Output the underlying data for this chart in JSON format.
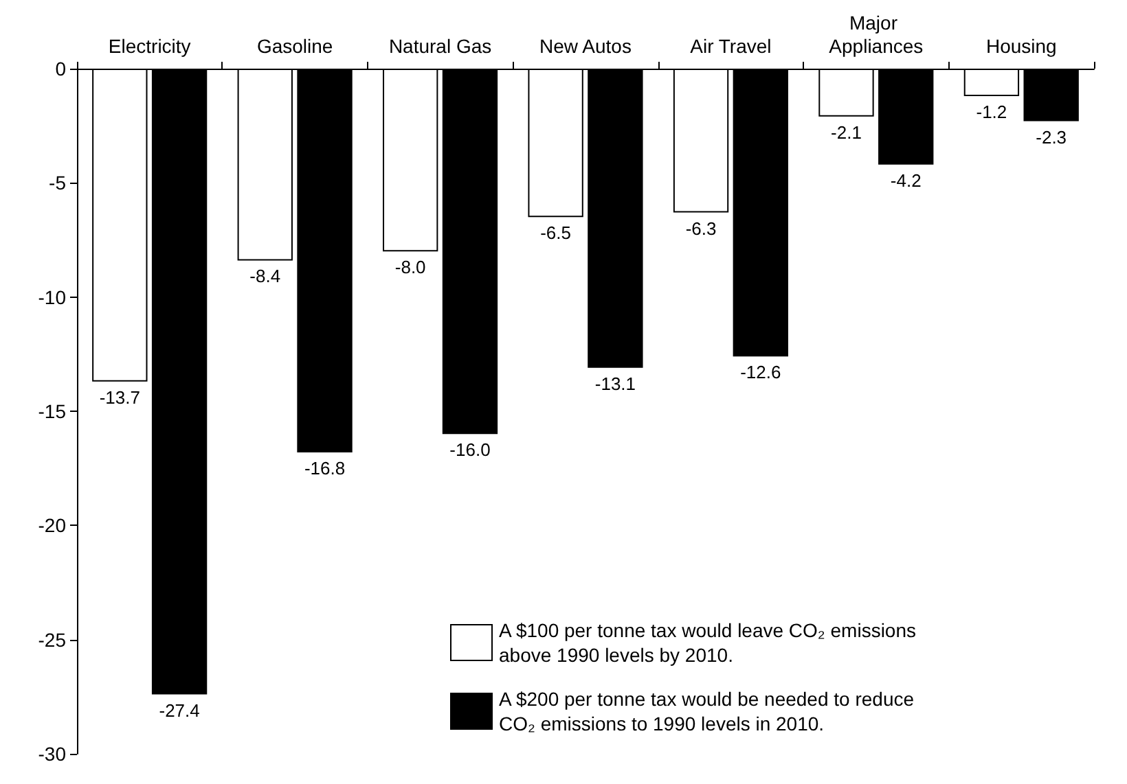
{
  "chart_data": {
    "type": "bar",
    "categories": [
      "Electricity",
      "Gasoline",
      "Natural Gas",
      "New Autos",
      "Air Travel",
      "Major Appliances",
      "Housing"
    ],
    "series": [
      {
        "name": "A $100 per tonne tax would leave CO₂ emissions above 1990 levels by 2010.",
        "color": "#ffffff",
        "values": [
          -13.7,
          -8.4,
          -8.0,
          -6.5,
          -6.3,
          -2.1,
          -1.2
        ],
        "value_labels": [
          "-13.7",
          "-8.4",
          "-8.0",
          "-6.5",
          "-6.3",
          "-2.1",
          "-1.2"
        ]
      },
      {
        "name": "A $200 per tonne tax would be needed to reduce CO₂ emissions to 1990 levels in 2010.",
        "color": "#000000",
        "values": [
          -27.4,
          -16.8,
          -16.0,
          -13.1,
          -12.6,
          -4.2,
          -2.3
        ],
        "value_labels": [
          "-27.4",
          "-16.8",
          "-16.0",
          "-13.1",
          "-12.6",
          "-4.2",
          "-2.3"
        ]
      }
    ],
    "ylim": [
      -30,
      0
    ],
    "yticks": [
      -30,
      -25,
      -20,
      -15,
      -10,
      -5,
      0
    ],
    "grid": false,
    "legend": "bottom right"
  }
}
